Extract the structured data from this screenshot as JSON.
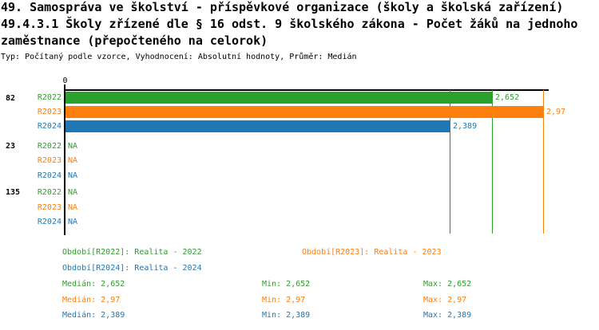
{
  "header": {
    "title_line1": "49. Samospráva ve školství - příspěvkové organizace (školy a školská zařízení)",
    "title_line2": "49.4.3.1 Školy zřízené dle § 16 odst. 9 školského zákona - Počet žáků na jednoho",
    "title_line3": "zaměstnance (přepočteného na celorok)",
    "subtitle": "Typ: Počítaný podle vzorce, Vyhodnocení: Absolutní hodnoty, Průměr: Medián"
  },
  "colors": {
    "R2022": "#2ca02c",
    "R2023": "#ff7f0e",
    "R2024": "#1f77b4",
    "axis": "#000000"
  },
  "chart_data": {
    "type": "bar",
    "orientation": "horizontal",
    "xlim": [
      0,
      2.97
    ],
    "axis_zero_label": "0",
    "grid": "off",
    "groups": [
      {
        "id": "82",
        "rows": [
          {
            "series": "R2022",
            "value": 2.652,
            "display": "2,652"
          },
          {
            "series": "R2023",
            "value": 2.97,
            "display": "2,97"
          },
          {
            "series": "R2024",
            "value": 2.389,
            "display": "2,389"
          }
        ]
      },
      {
        "id": "23",
        "rows": [
          {
            "series": "R2022",
            "value": null,
            "display": "NA"
          },
          {
            "series": "R2023",
            "value": null,
            "display": "NA"
          },
          {
            "series": "R2024",
            "value": null,
            "display": "NA"
          }
        ]
      },
      {
        "id": "135",
        "rows": [
          {
            "series": "R2022",
            "value": null,
            "display": "NA"
          },
          {
            "series": "R2023",
            "value": null,
            "display": "NA"
          },
          {
            "series": "R2024",
            "value": null,
            "display": "NA"
          }
        ]
      }
    ],
    "reference_lines": [
      {
        "series": "R2024",
        "value": 2.389
      },
      {
        "series": "R2022",
        "value": 2.652
      },
      {
        "series": "R2023",
        "value": 2.97
      }
    ]
  },
  "legend": {
    "periods": [
      {
        "series": "R2022",
        "label": "Období[R2022]: Realita - 2022"
      },
      {
        "series": "R2023",
        "label": "Období[R2023]: Realita - 2023"
      },
      {
        "series": "R2024",
        "label": "Období[R2024]: Realita - 2024"
      }
    ],
    "stats": [
      {
        "series": "R2022",
        "median": "Medián: 2,652",
        "min": "Min: 2,652",
        "max": "Max: 2,652"
      },
      {
        "series": "R2023",
        "median": "Medián: 2,97",
        "min": "Min: 2,97",
        "max": "Max: 2,97"
      },
      {
        "series": "R2024",
        "median": "Medián: 2,389",
        "min": "Min: 2,389",
        "max": "Max: 2,389"
      }
    ]
  }
}
